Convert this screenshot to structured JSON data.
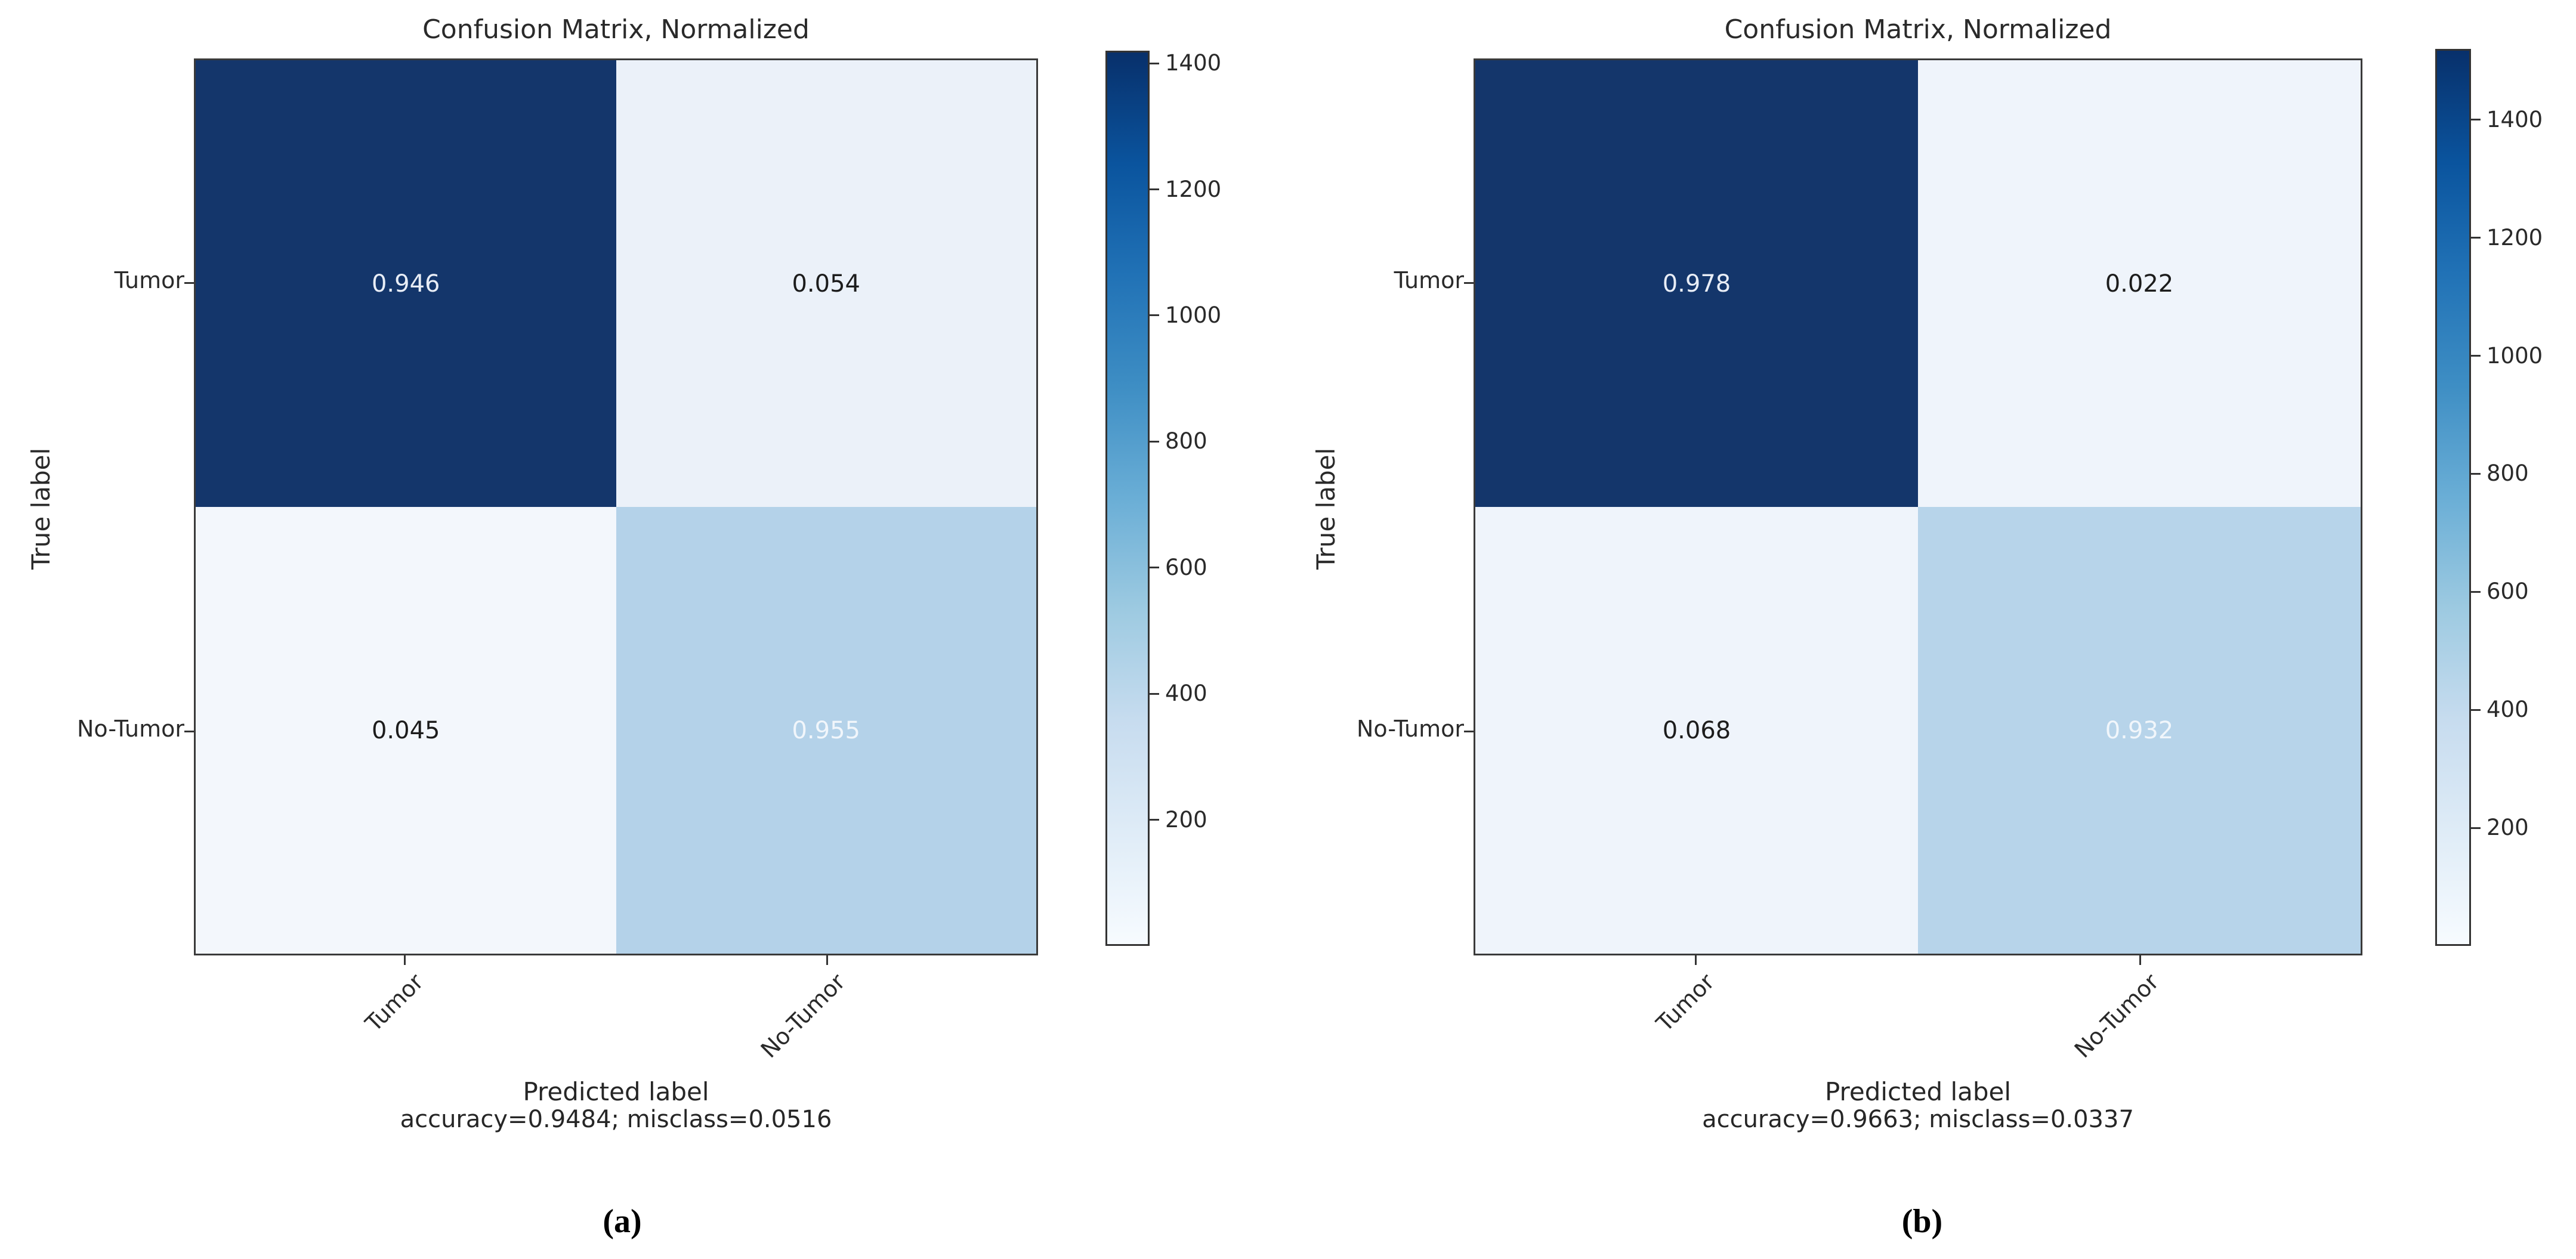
{
  "colors": {
    "axes_edge": "#3a3a3a",
    "tick": "#333333",
    "text": "#262626",
    "colormap_dark": "#08306b",
    "colormap_light": "#f7fbff",
    "background": "#ffffff"
  },
  "chart_data": [
    {
      "type": "heatmap",
      "panel": "a",
      "caption": "(a)",
      "title": "Confusion Matrix, Normalized",
      "xlabel": "Predicted label",
      "ylabel": "True label",
      "annotation": "accuracy=0.9484; misclass=0.0516",
      "accuracy": 0.9484,
      "misclass": 0.0516,
      "x_categories": [
        "Tumor",
        "No-Tumor"
      ],
      "y_categories": [
        "Tumor",
        "No-Tumor"
      ],
      "values": [
        [
          0.946,
          0.054
        ],
        [
          0.045,
          0.955
        ]
      ],
      "cell_styles": [
        [
          {
            "bg": "#14366b",
            "fg": "#e8edf6"
          },
          {
            "bg": "#ebf1f9",
            "fg": "#1c1c1c"
          }
        ],
        [
          {
            "bg": "#f3f7fc",
            "fg": "#1c1c1c"
          },
          {
            "bg": "#b4d2e9",
            "fg": "#f1f6fb"
          }
        ]
      ],
      "colorbar": {
        "vmin": 0,
        "vmax": 1420,
        "tick_labels": [
          "1400",
          "1200",
          "1000",
          "800",
          "600",
          "400",
          "200"
        ],
        "tick_values": [
          1400,
          1200,
          1000,
          800,
          600,
          400,
          200
        ]
      },
      "legend_position": "right",
      "grid": false
    },
    {
      "type": "heatmap",
      "panel": "b",
      "caption": "(b)",
      "title": "Confusion Matrix, Normalized",
      "xlabel": "Predicted label",
      "ylabel": "True label",
      "annotation": "accuracy=0.9663; misclass=0.0337",
      "accuracy": 0.9663,
      "misclass": 0.0337,
      "x_categories": [
        "Tumor",
        "No-Tumor"
      ],
      "y_categories": [
        "Tumor",
        "No-Tumor"
      ],
      "values": [
        [
          0.978,
          0.022
        ],
        [
          0.068,
          0.932
        ]
      ],
      "cell_styles": [
        [
          {
            "bg": "#14366b",
            "fg": "#e8edf6"
          },
          {
            "bg": "#eff4fb",
            "fg": "#1c1c1c"
          }
        ],
        [
          {
            "bg": "#eff4fb",
            "fg": "#1c1c1c"
          },
          {
            "bg": "#b7d4ea",
            "fg": "#f1f6fb"
          }
        ]
      ],
      "colorbar": {
        "vmin": 0,
        "vmax": 1520,
        "tick_labels": [
          "1400",
          "1200",
          "1000",
          "800",
          "600",
          "400",
          "200"
        ],
        "tick_values": [
          1400,
          1200,
          1000,
          800,
          600,
          400,
          200
        ]
      },
      "legend_position": "right",
      "grid": false
    }
  ]
}
